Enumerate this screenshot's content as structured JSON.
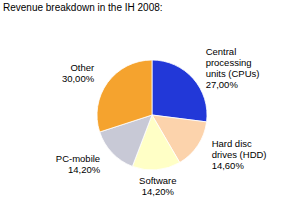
{
  "chart_data": {
    "type": "pie",
    "title": "Revenue breakdown in the IH 2008:",
    "categories": [
      "Central processing units (CPUs)",
      "Hard disc drives (HDD)",
      "Software",
      "PC-mobile",
      "Other"
    ],
    "values": [
      27,
      14.6,
      14.2,
      14.2,
      30
    ],
    "value_labels": [
      "27,00%",
      "14,60%",
      "14,20%",
      "14,20%",
      "30,00%"
    ],
    "colors": [
      "#2238d8",
      "#fcd3ac",
      "#ffffc6",
      "#c8c9d6",
      "#f5a32e"
    ],
    "data_labels": true
  }
}
